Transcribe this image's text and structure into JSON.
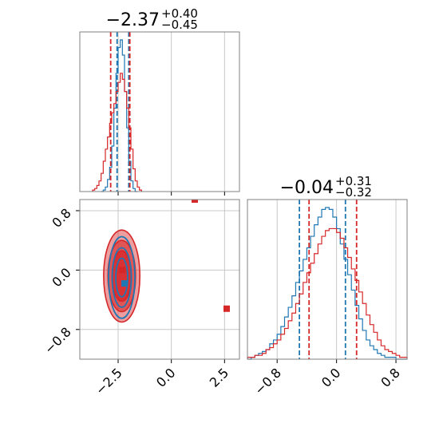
{
  "chart_data": {
    "type": "corner",
    "colors": {
      "blue": "#1f77b4",
      "red": "#d62728",
      "grid": "#c8c8c8",
      "frame": "#808080"
    },
    "grid": true,
    "parameters": [
      {
        "title": {
          "median": "−2.37",
          "plus": "+0.40",
          "minus": "−0.45"
        },
        "range": [
          -4.3,
          3.2
        ],
        "ticks": [
          -2.5,
          0.0,
          2.5
        ],
        "tick_labels": [
          "−2.5",
          "0.0",
          "2.5"
        ],
        "histograms": [
          {
            "series": "blue",
            "bins": [
              -3.3,
              -3.2,
              -3.1,
              -3.0,
              -2.9,
              -2.8,
              -2.7,
              -2.6,
              -2.5,
              -2.4,
              -2.3,
              -2.2,
              -2.1,
              -2.0,
              -1.9,
              -1.8,
              -1.7
            ],
            "counts": [
              0,
              0.01,
              0.03,
              0.08,
              0.16,
              0.3,
              0.55,
              0.78,
              0.95,
              1.0,
              0.9,
              0.66,
              0.42,
              0.2,
              0.07,
              0.02,
              0
            ],
            "quantiles": [
              -2.55,
              -2.0
            ]
          },
          {
            "series": "red",
            "bins": [
              -3.7,
              -3.6,
              -3.5,
              -3.4,
              -3.3,
              -3.2,
              -3.1,
              -3.0,
              -2.9,
              -2.8,
              -2.7,
              -2.6,
              -2.5,
              -2.4,
              -2.3,
              -2.2,
              -2.1,
              -2.0,
              -1.9,
              -1.8,
              -1.7,
              -1.6,
              -1.5
            ],
            "counts": [
              0.01,
              0.02,
              0.04,
              0.07,
              0.12,
              0.2,
              0.28,
              0.36,
              0.45,
              0.52,
              0.58,
              0.66,
              0.72,
              0.78,
              0.74,
              0.66,
              0.55,
              0.42,
              0.28,
              0.15,
              0.07,
              0.03,
              0.01
            ],
            "quantiles": [
              -2.85,
              -1.95
            ]
          }
        ]
      },
      {
        "title": {
          "median": "−0.04",
          "plus": "+0.31",
          "minus": "−0.32"
        },
        "range": [
          -1.2,
          0.95
        ],
        "ticks": [
          -0.8,
          0.0,
          0.8
        ],
        "tick_labels": [
          "−0.8",
          "0.0",
          "0.8"
        ],
        "histograms": [
          {
            "series": "blue",
            "bins": [
              -1.2,
              -1.15,
              -1.1,
              -1.05,
              -1.0,
              -0.95,
              -0.9,
              -0.85,
              -0.8,
              -0.75,
              -0.7,
              -0.65,
              -0.6,
              -0.55,
              -0.5,
              -0.45,
              -0.4,
              -0.35,
              -0.3,
              -0.25,
              -0.2,
              -0.15,
              -0.1,
              -0.05,
              0.0,
              0.05,
              0.1,
              0.15,
              0.2,
              0.25,
              0.3,
              0.35,
              0.4,
              0.45,
              0.5,
              0.55,
              0.6,
              0.65,
              0.7,
              0.75,
              0.8,
              0.85,
              0.9
            ],
            "counts": [
              0,
              0.01,
              0.02,
              0.03,
              0.04,
              0.05,
              0.08,
              0.1,
              0.13,
              0.17,
              0.22,
              0.27,
              0.33,
              0.4,
              0.46,
              0.52,
              0.58,
              0.64,
              0.7,
              0.74,
              0.78,
              0.79,
              0.78,
              0.74,
              0.68,
              0.6,
              0.52,
              0.44,
              0.36,
              0.28,
              0.21,
              0.15,
              0.1,
              0.07,
              0.05,
              0.03,
              0.02,
              0.01,
              0.01,
              0.01,
              0,
              0,
              0
            ],
            "quantiles": [
              -0.5,
              0.12
            ]
          },
          {
            "series": "red",
            "bins": [
              -1.2,
              -1.15,
              -1.1,
              -1.05,
              -1.0,
              -0.95,
              -0.9,
              -0.85,
              -0.8,
              -0.75,
              -0.7,
              -0.65,
              -0.6,
              -0.55,
              -0.5,
              -0.45,
              -0.4,
              -0.35,
              -0.3,
              -0.25,
              -0.2,
              -0.15,
              -0.1,
              -0.05,
              0.0,
              0.05,
              0.1,
              0.15,
              0.2,
              0.25,
              0.3,
              0.35,
              0.4,
              0.45,
              0.5,
              0.55,
              0.6,
              0.65,
              0.7,
              0.75,
              0.8,
              0.85,
              0.9
            ],
            "counts": [
              0.01,
              0.01,
              0.02,
              0.02,
              0.03,
              0.05,
              0.06,
              0.08,
              0.1,
              0.13,
              0.16,
              0.2,
              0.24,
              0.29,
              0.34,
              0.4,
              0.45,
              0.5,
              0.55,
              0.6,
              0.64,
              0.67,
              0.68,
              0.68,
              0.66,
              0.63,
              0.58,
              0.53,
              0.47,
              0.41,
              0.35,
              0.29,
              0.23,
              0.18,
              0.14,
              0.1,
              0.07,
              0.05,
              0.04,
              0.03,
              0.02,
              0.01,
              0.01
            ],
            "quantiles": [
              -0.37,
              0.27
            ]
          }
        ]
      }
    ],
    "joint": {
      "red_fill_levels": [
        {
          "cx": -2.33,
          "cy": -0.08,
          "rx": 0.85,
          "ry": 0.62,
          "opacity": 0.45
        },
        {
          "cx": -2.33,
          "cy": -0.08,
          "rx": 0.65,
          "ry": 0.48,
          "opacity": 0.6
        },
        {
          "cx": -2.33,
          "cy": -0.08,
          "rx": 0.45,
          "ry": 0.34,
          "opacity": 0.75
        }
      ],
      "blue_contours": [
        {
          "cx": -2.33,
          "cy": -0.1,
          "rx": 0.62,
          "ry": 0.55
        },
        {
          "cx": -2.33,
          "cy": -0.1,
          "rx": 0.45,
          "ry": 0.4
        },
        {
          "cx": -2.33,
          "cy": -0.1,
          "rx": 0.28,
          "ry": 0.26
        }
      ],
      "markers": [
        {
          "series": "red",
          "x": 1.1,
          "y": 0.95
        },
        {
          "series": "red",
          "x": 2.6,
          "y": -0.52
        },
        {
          "series": "red",
          "x": -2.3,
          "y": 0.0
        },
        {
          "series": "blue",
          "x": -2.2,
          "y": -0.18
        }
      ]
    }
  }
}
